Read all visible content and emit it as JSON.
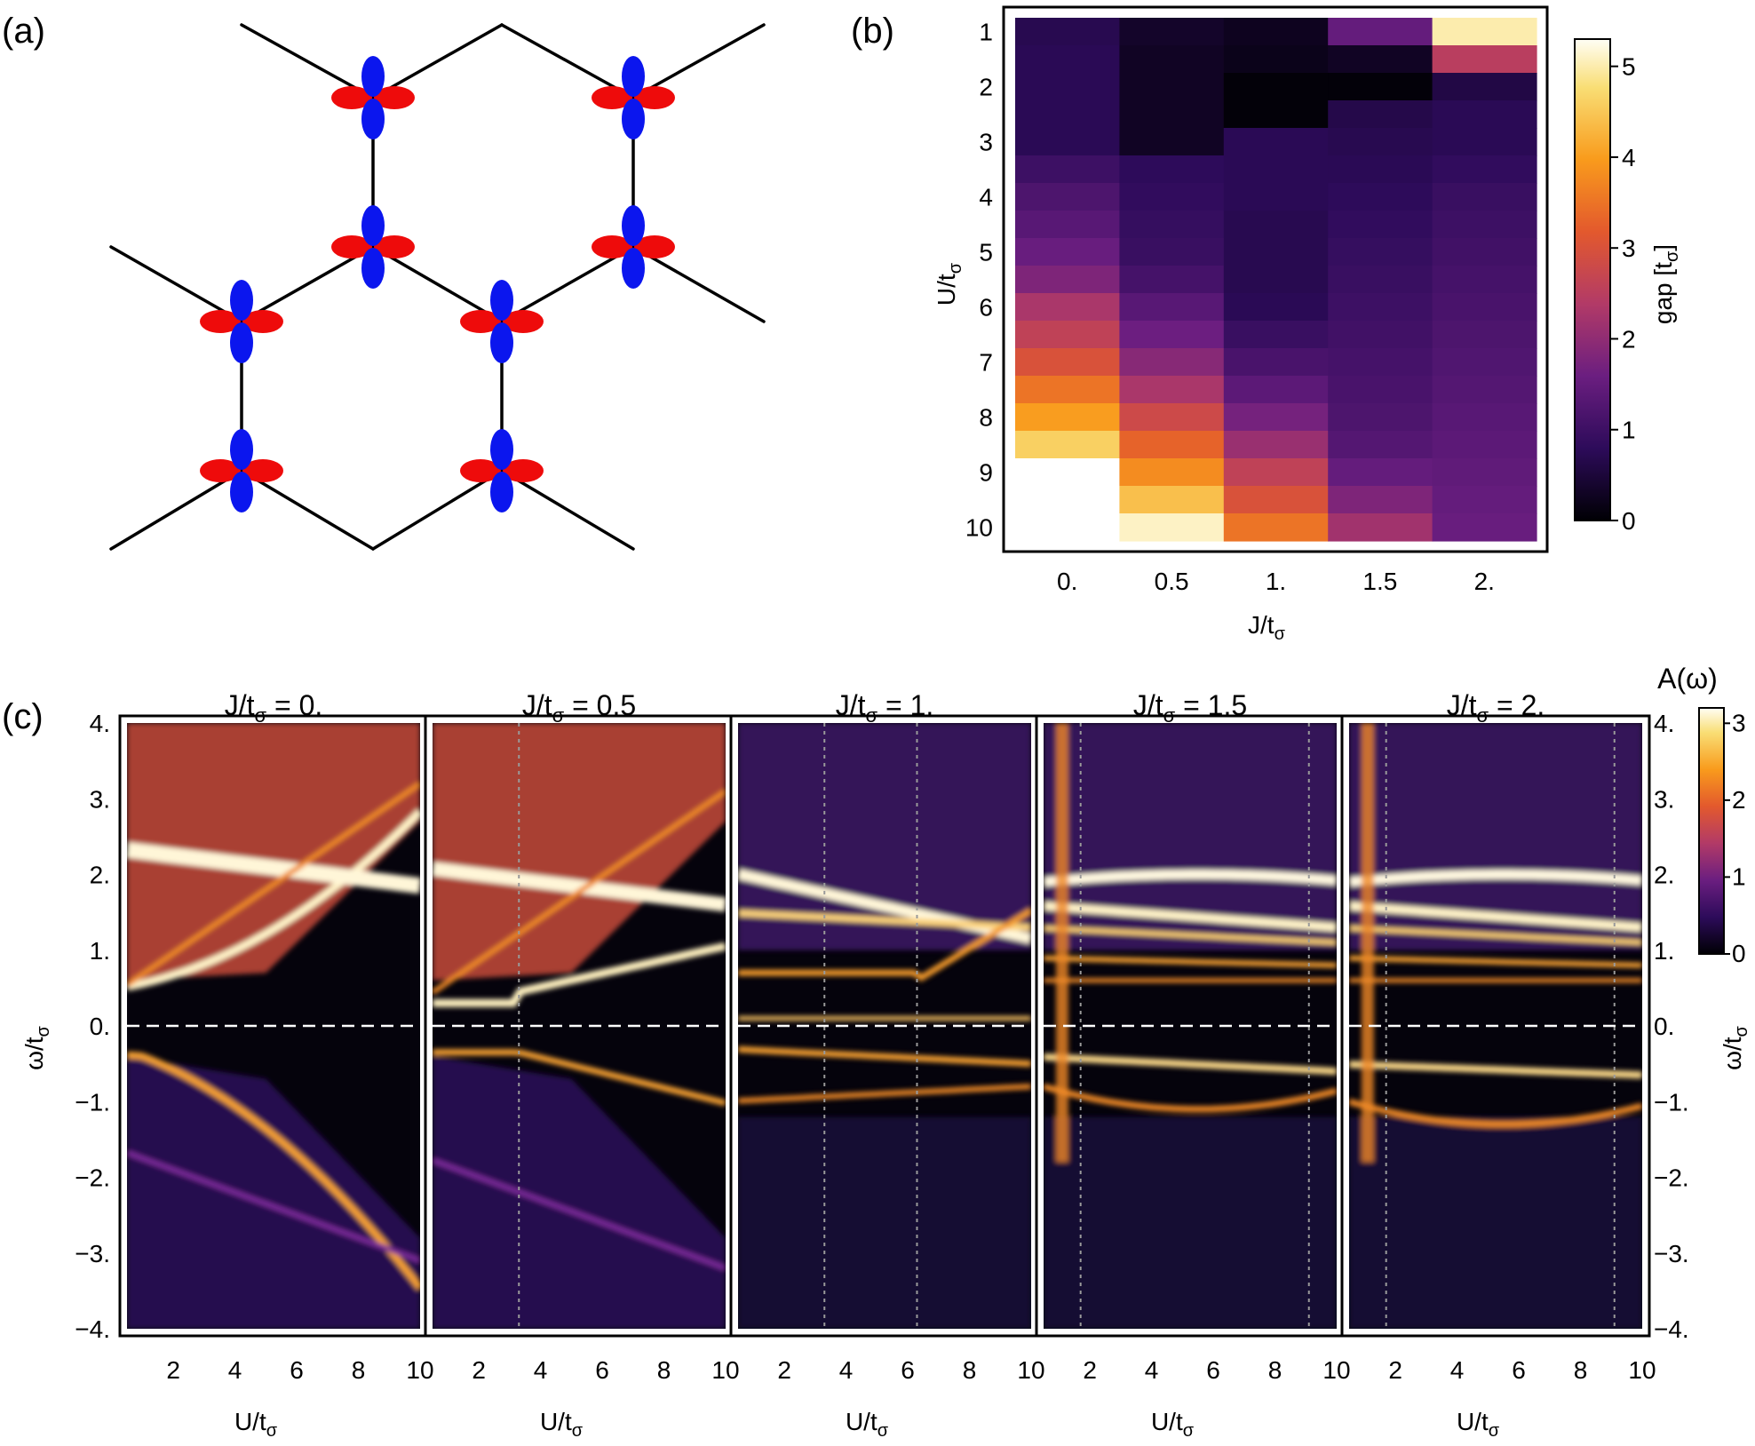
{
  "panels": {
    "a": {
      "label": "(a)"
    },
    "b": {
      "label": "(b)"
    },
    "c": {
      "label": "(c)"
    }
  },
  "panel_b": {
    "xlabel": "J/t",
    "xlabel_sub": "σ",
    "ylabel": "U/t",
    "ylabel_sub": "σ",
    "colorbar_label": "gap [t",
    "colorbar_label_sub": "σ",
    "colorbar_label_end": "]",
    "colorbar_ticks": [
      "0",
      "1",
      "2",
      "3",
      "4",
      "5"
    ],
    "x_ticks": [
      "0.",
      "0.5",
      "1.",
      "1.5",
      "2."
    ],
    "y_ticks": [
      "1",
      "2",
      "3",
      "4",
      "5",
      "6",
      "7",
      "8",
      "9",
      "10"
    ]
  },
  "panel_c": {
    "titles": [
      {
        "pre": "J/t",
        "sub": "σ",
        "post": " = 0."
      },
      {
        "pre": "J/t",
        "sub": "σ",
        "post": " = 0.5"
      },
      {
        "pre": "J/t",
        "sub": "σ",
        "post": " = 1."
      },
      {
        "pre": "J/t",
        "sub": "σ",
        "post": " = 1.5"
      },
      {
        "pre": "J/t",
        "sub": "σ",
        "post": " = 2."
      }
    ],
    "xlabel": "U/t",
    "xlabel_sub": "σ",
    "ylabel": "ω/t",
    "ylabel_sub": "σ",
    "x_ticks": [
      "2",
      "4",
      "6",
      "8",
      "10"
    ],
    "y_ticks": [
      "4.",
      "3.",
      "2.",
      "1.",
      "0.",
      "−1.",
      "−2.",
      "−3.",
      "−4."
    ],
    "colorbar_label": "A(ω)",
    "colorbar_ticks": [
      "0",
      "1",
      "2",
      "3"
    ]
  },
  "chart_data": [
    {
      "type": "heatmap",
      "panel": "b",
      "x": [
        0,
        0.5,
        1,
        1.5,
        2
      ],
      "y": [
        1,
        1.5,
        2,
        2.5,
        3,
        3.5,
        4,
        4.5,
        5,
        5.5,
        6,
        6.5,
        7,
        7.5,
        8,
        8.5,
        9,
        9.5,
        10
      ],
      "xlabel": "J/tσ",
      "ylabel": "U/tσ",
      "colorbar": {
        "label": "gap [tσ]",
        "range": [
          0,
          5.3
        ]
      },
      "values": [
        [
          0.7,
          0.35,
          0.25,
          1.5,
          5.0
        ],
        [
          0.75,
          0.3,
          0.2,
          0.3,
          2.5
        ],
        [
          0.75,
          0.3,
          0.05,
          0.05,
          0.6
        ],
        [
          0.75,
          0.3,
          0.05,
          0.65,
          0.75
        ],
        [
          0.75,
          0.3,
          0.75,
          0.7,
          0.75
        ],
        [
          1.0,
          0.8,
          0.75,
          0.75,
          0.85
        ],
        [
          1.2,
          0.85,
          0.75,
          0.8,
          0.95
        ],
        [
          1.35,
          0.9,
          0.7,
          0.85,
          1.0
        ],
        [
          1.55,
          0.95,
          0.7,
          0.9,
          1.05
        ],
        [
          1.8,
          1.1,
          0.7,
          0.95,
          1.1
        ],
        [
          2.3,
          1.35,
          0.75,
          1.0,
          1.15
        ],
        [
          2.6,
          1.6,
          0.95,
          1.05,
          1.2
        ],
        [
          3.0,
          1.9,
          1.15,
          1.1,
          1.25
        ],
        [
          3.5,
          2.3,
          1.4,
          1.15,
          1.3
        ],
        [
          4.0,
          2.8,
          1.7,
          1.2,
          1.35
        ],
        [
          4.6,
          3.3,
          2.1,
          1.3,
          1.4
        ],
        [
          null,
          3.8,
          2.6,
          1.5,
          1.45
        ],
        [
          null,
          4.4,
          3.0,
          1.8,
          1.5
        ],
        [
          null,
          5.1,
          3.5,
          2.2,
          1.55
        ]
      ]
    },
    {
      "type": "heatmap",
      "panel": "c",
      "subplots": [
        {
          "J": 0,
          "bands": [
            [
              0.5,
              2.3,
              3.3
            ],
            [
              -0.35,
              -2.2,
              -3.0
            ]
          ],
          "transitions": []
        },
        {
          "J": 0.5,
          "bands": [
            [
              0.3,
              2.1,
              3.2
            ],
            [
              -0.35,
              -2.2,
              -3.0
            ]
          ],
          "transitions": [
            3.3
          ]
        },
        {
          "J": 1,
          "bands": [
            [
              0.4,
              2.0,
              1.5
            ],
            [
              -0.3,
              -1.0
            ]
          ],
          "transitions": [
            3.3,
            6.3
          ]
        },
        {
          "J": 1.5,
          "bands": [
            [
              2.0,
              1.6,
              0.9,
              0.6
            ],
            [
              -0.4,
              -1.0
            ]
          ],
          "transitions": [
            1.7,
            9.1
          ]
        },
        {
          "J": 2,
          "bands": [
            [
              2.0,
              1.5,
              0.9,
              0.6
            ],
            [
              -0.5,
              -1.3
            ]
          ],
          "transitions": [
            1.7,
            9.1
          ]
        }
      ],
      "xlabel": "U/tσ",
      "ylabel": "ω/tσ",
      "xlim": [
        0.5,
        10
      ],
      "ylim": [
        -4,
        4
      ],
      "colorbar": {
        "label": "A(ω)",
        "range": [
          0,
          3.2
        ]
      }
    }
  ]
}
